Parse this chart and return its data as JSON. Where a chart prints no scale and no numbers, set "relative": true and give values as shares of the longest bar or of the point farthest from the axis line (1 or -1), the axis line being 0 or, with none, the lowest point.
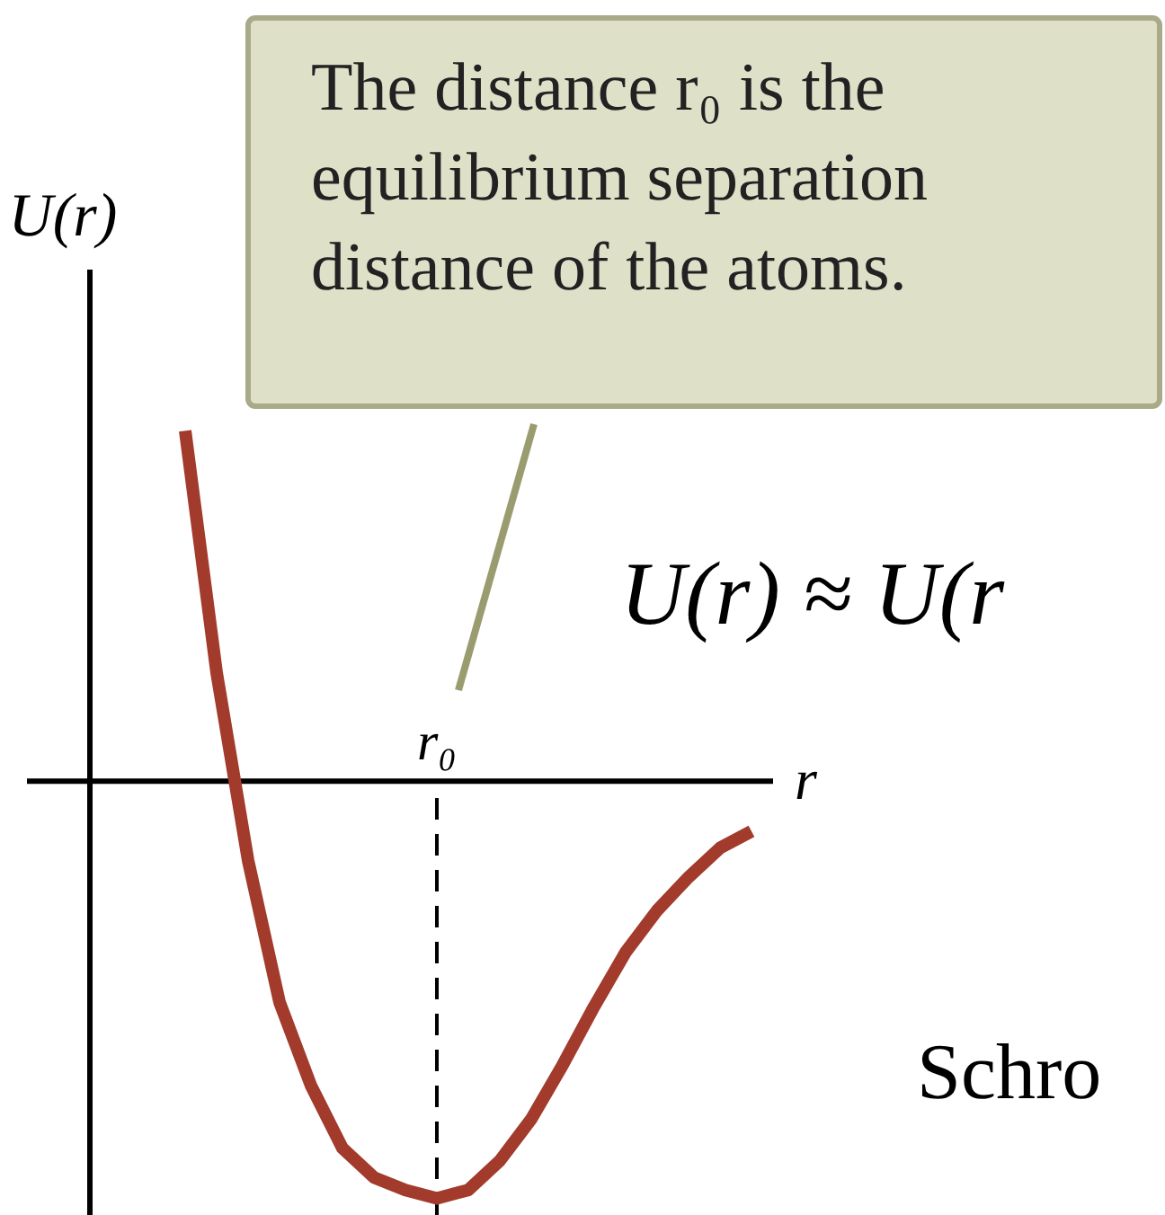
{
  "chart_data": {
    "type": "line",
    "relative": true,
    "xlabel": "r",
    "ylabel": "U(r)",
    "marker": "none",
    "line_style": "solid",
    "categories": [
      null,
      null,
      null,
      null,
      null,
      null,
      null,
      null,
      null,
      null,
      null,
      null,
      null,
      null,
      null,
      null,
      null,
      null,
      null
    ],
    "series": [
      {
        "color": "#a23b2c",
        "values": [
          0.84,
          0.26,
          -0.19,
          -0.53,
          -0.73,
          -0.88,
          -0.95,
          -0.98,
          -1.0,
          -0.98,
          -0.91,
          -0.81,
          -0.68,
          -0.54,
          -0.41,
          -0.31,
          -0.23,
          -0.16,
          -0.12
        ]
      }
    ],
    "annotations": [
      "The distance r₀ is the equilibrium separation distance of the atoms.",
      "U(r) ≈ U(r",
      "Schro",
      "r₀"
    ]
  }
}
